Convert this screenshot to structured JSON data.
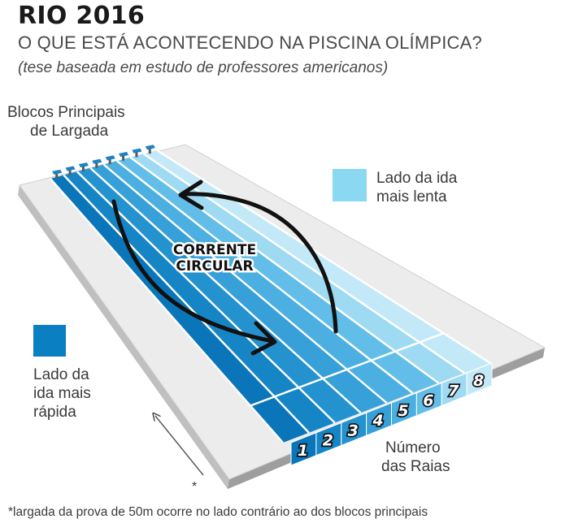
{
  "header": {
    "title": "RIO 2016",
    "subtitle": "O QUE ESTÁ ACONTECENDO NA PISCINA OLÍMPICA?",
    "note": "(tese baseada em estudo de professores americanos)"
  },
  "labels": {
    "blocks_line1": "Blocos Principais",
    "blocks_line2": "de Largada",
    "slow_line1": "Lado da ida",
    "slow_line2": "mais lenta",
    "fast_line1": "Lado da",
    "fast_line2": "ida mais",
    "fast_line3": "rápida",
    "lanes_line1": "Número",
    "lanes_line2": "das Raias",
    "current_line1": "CORRENTE",
    "current_line2": "CIRCULAR",
    "asterisk": "*"
  },
  "lanes": [
    "1",
    "2",
    "3",
    "4",
    "5",
    "6",
    "7",
    "8"
  ],
  "footnote": "*largada da prova de 50m ocorre no lado contrário ao dos blocos principais",
  "colors": {
    "fast": "#0a7fc2",
    "slow": "#8ad8f2",
    "deck": "#ececec",
    "lane_gradient": [
      "#0a76b9",
      "#1585c6",
      "#2592d0",
      "#37a0d9",
      "#4bafe1",
      "#62bee8",
      "#9fdaf3",
      "#c3e9f8"
    ]
  },
  "icons": {
    "current_arrows": "circular-arrows-icon",
    "direction_arrow": "arrow-up-left-icon",
    "starting_block": "starting-block-icon"
  }
}
